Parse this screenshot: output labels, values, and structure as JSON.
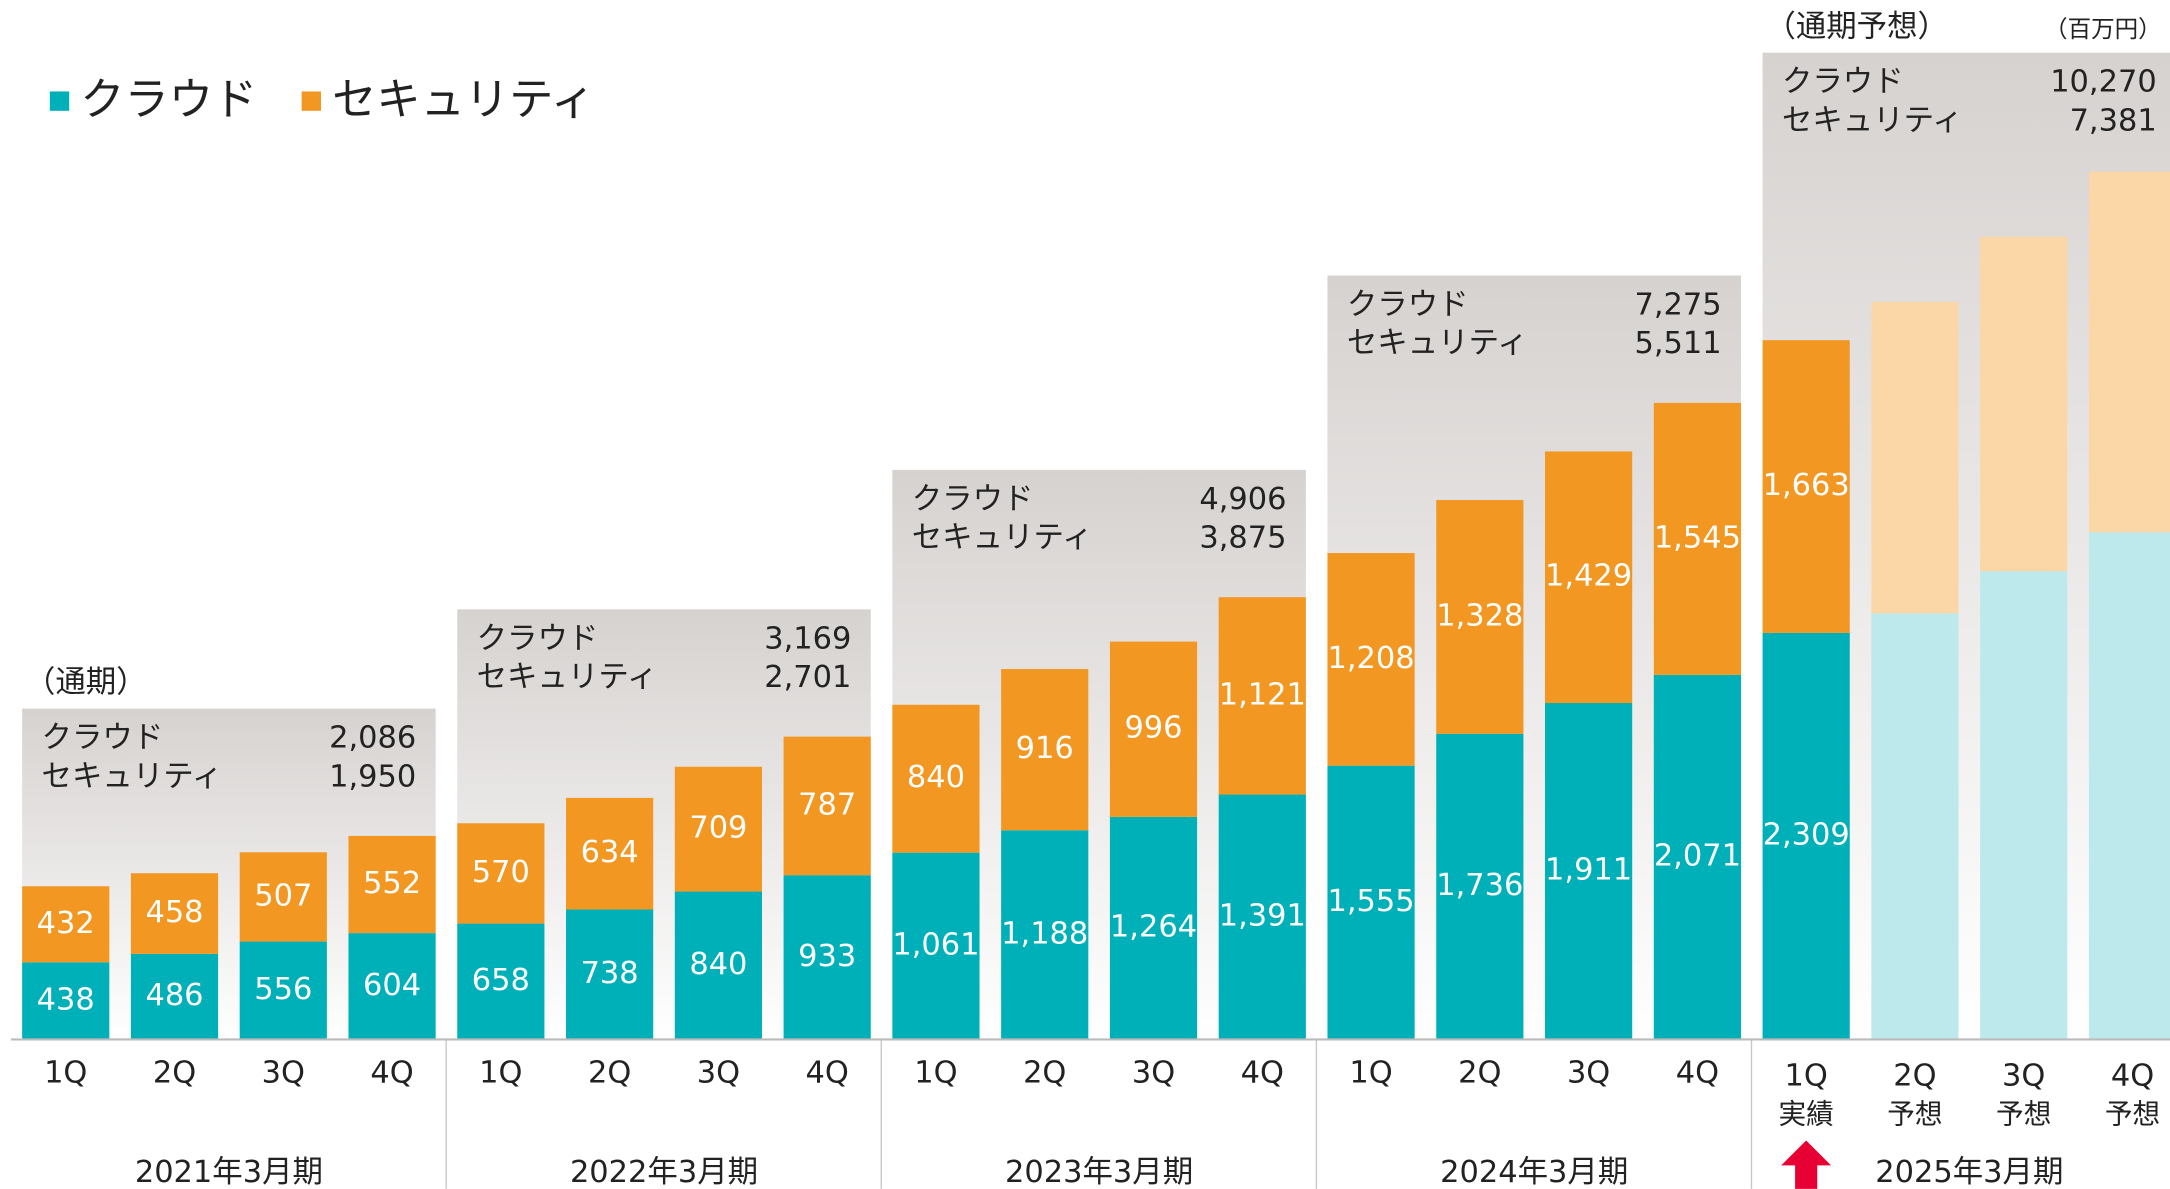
{
  "chart_data": {
    "type": "stacked-bar",
    "unit": "（百万円）",
    "categories": [
      "1Q",
      "2Q",
      "3Q",
      "4Q",
      "1Q",
      "2Q",
      "3Q",
      "4Q",
      "1Q",
      "2Q",
      "3Q",
      "4Q",
      "1Q",
      "2Q",
      "3Q",
      "4Q",
      "1Q",
      "2Q",
      "3Q",
      "4Q"
    ],
    "sublabels": [
      null,
      null,
      null,
      null,
      null,
      null,
      null,
      null,
      null,
      null,
      null,
      null,
      null,
      null,
      null,
      null,
      "実績",
      "予想",
      "予想",
      "予想"
    ],
    "series": [
      {
        "name": "クラウド",
        "color": "#00b0b9",
        "forecast_color": "#bde9ec",
        "values": [
          438,
          486,
          556,
          604,
          658,
          738,
          840,
          933,
          1061,
          1188,
          1264,
          1391,
          1555,
          1736,
          1911,
          2071,
          2309,
          2420,
          2660,
          2881
        ],
        "value_labels": [
          "438",
          "486",
          "556",
          "604",
          "658",
          "738",
          "840",
          "933",
          "1,061",
          "1,188",
          "1,264",
          "1,391",
          "1,555",
          "1,736",
          "1,911",
          "2,071",
          "2,309",
          null,
          null,
          null
        ]
      },
      {
        "name": "セキュリティ",
        "color": "#f29722",
        "forecast_color": "#fbd7a7",
        "values": [
          432,
          458,
          507,
          552,
          570,
          634,
          709,
          787,
          840,
          916,
          996,
          1121,
          1208,
          1328,
          1429,
          1545,
          1663,
          1770,
          1900,
          2048
        ],
        "value_labels": [
          "432",
          "458",
          "507",
          "552",
          "570",
          "634",
          "709",
          "787",
          "840",
          "916",
          "996",
          "1,121",
          "1,208",
          "1,328",
          "1,429",
          "1,545",
          "1,663",
          null,
          null,
          null
        ]
      }
    ],
    "annual": [
      {
        "period": "2021年3月期",
        "heading": "（通期）",
        "values": [
          2086,
          1950
        ],
        "value_labels": [
          "2,086",
          "1,950"
        ]
      },
      {
        "period": "2022年3月期",
        "values": [
          3169,
          2701
        ],
        "value_labels": [
          "3,169",
          "2,701"
        ]
      },
      {
        "period": "2023年3月期",
        "values": [
          4906,
          3875
        ],
        "value_labels": [
          "4,906",
          "3,875"
        ]
      },
      {
        "period": "2024年3月期",
        "values": [
          7275,
          5511
        ],
        "value_labels": [
          "7,275",
          "5,511"
        ]
      },
      {
        "period": "2025年3月期",
        "heading": "（通期予想）",
        "values": [
          10270,
          7381
        ],
        "value_labels": [
          "10,270",
          "7,381"
        ]
      }
    ]
  }
}
